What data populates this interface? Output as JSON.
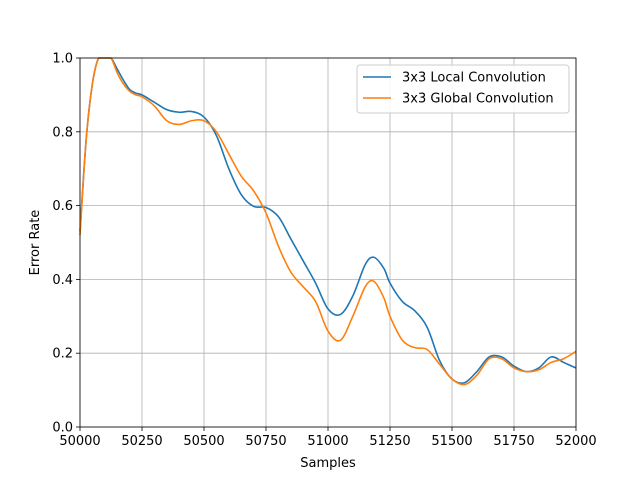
{
  "chart_data": {
    "type": "line",
    "xlabel": "Samples",
    "ylabel": "Error Rate",
    "xlim": [
      50000,
      52000
    ],
    "ylim": [
      0.0,
      1.0
    ],
    "xticks": [
      50000,
      50250,
      50500,
      50750,
      51000,
      51250,
      51500,
      51750,
      52000
    ],
    "xtick_labels": [
      "50000",
      "50250",
      "50500",
      "50750",
      "51000",
      "51250",
      "51500",
      "51750",
      "52000"
    ],
    "yticks": [
      0.0,
      0.2,
      0.4,
      0.6,
      0.8,
      1.0
    ],
    "ytick_labels": [
      "0.0",
      "0.2",
      "0.4",
      "0.6",
      "0.8",
      "1.0"
    ],
    "grid": true,
    "legend_position": "top-right",
    "series": [
      {
        "name": "3x3 Local Convolution",
        "color": "#1f77b4",
        "points": [
          [
            50000,
            0.53
          ],
          [
            50025,
            0.78
          ],
          [
            50050,
            0.93
          ],
          [
            50075,
            1.0
          ],
          [
            50100,
            1.0
          ],
          [
            50125,
            1.0
          ],
          [
            50150,
            0.97
          ],
          [
            50175,
            0.94
          ],
          [
            50200,
            0.915
          ],
          [
            50225,
            0.905
          ],
          [
            50250,
            0.9
          ],
          [
            50300,
            0.88
          ],
          [
            50350,
            0.86
          ],
          [
            50400,
            0.853
          ],
          [
            50450,
            0.855
          ],
          [
            50500,
            0.84
          ],
          [
            50550,
            0.79
          ],
          [
            50600,
            0.7
          ],
          [
            50650,
            0.63
          ],
          [
            50700,
            0.598
          ],
          [
            50750,
            0.595
          ],
          [
            50800,
            0.57
          ],
          [
            50850,
            0.51
          ],
          [
            50900,
            0.45
          ],
          [
            50950,
            0.39
          ],
          [
            51000,
            0.32
          ],
          [
            51050,
            0.305
          ],
          [
            51100,
            0.355
          ],
          [
            51150,
            0.44
          ],
          [
            51185,
            0.46
          ],
          [
            51225,
            0.43
          ],
          [
            51250,
            0.39
          ],
          [
            51300,
            0.34
          ],
          [
            51350,
            0.315
          ],
          [
            51400,
            0.27
          ],
          [
            51450,
            0.18
          ],
          [
            51500,
            0.13
          ],
          [
            51550,
            0.12
          ],
          [
            51600,
            0.15
          ],
          [
            51650,
            0.19
          ],
          [
            51700,
            0.19
          ],
          [
            51750,
            0.165
          ],
          [
            51800,
            0.15
          ],
          [
            51850,
            0.16
          ],
          [
            51900,
            0.19
          ],
          [
            51950,
            0.175
          ],
          [
            52000,
            0.16
          ]
        ]
      },
      {
        "name": "3x3 Global Convolution",
        "color": "#ff7f0e",
        "points": [
          [
            50000,
            0.52
          ],
          [
            50025,
            0.78
          ],
          [
            50050,
            0.93
          ],
          [
            50075,
            1.0
          ],
          [
            50100,
            1.0
          ],
          [
            50125,
            1.0
          ],
          [
            50150,
            0.96
          ],
          [
            50175,
            0.93
          ],
          [
            50200,
            0.91
          ],
          [
            50225,
            0.9
          ],
          [
            50250,
            0.895
          ],
          [
            50300,
            0.87
          ],
          [
            50350,
            0.83
          ],
          [
            50400,
            0.82
          ],
          [
            50450,
            0.83
          ],
          [
            50500,
            0.83
          ],
          [
            50550,
            0.8
          ],
          [
            50600,
            0.74
          ],
          [
            50650,
            0.68
          ],
          [
            50700,
            0.64
          ],
          [
            50750,
            0.58
          ],
          [
            50800,
            0.49
          ],
          [
            50850,
            0.42
          ],
          [
            50900,
            0.38
          ],
          [
            50950,
            0.34
          ],
          [
            51000,
            0.26
          ],
          [
            51050,
            0.235
          ],
          [
            51100,
            0.3
          ],
          [
            51150,
            0.38
          ],
          [
            51185,
            0.395
          ],
          [
            51225,
            0.35
          ],
          [
            51250,
            0.3
          ],
          [
            51300,
            0.235
          ],
          [
            51350,
            0.215
          ],
          [
            51400,
            0.21
          ],
          [
            51450,
            0.17
          ],
          [
            51500,
            0.13
          ],
          [
            51550,
            0.115
          ],
          [
            51600,
            0.14
          ],
          [
            51650,
            0.185
          ],
          [
            51700,
            0.185
          ],
          [
            51750,
            0.16
          ],
          [
            51800,
            0.15
          ],
          [
            51850,
            0.155
          ],
          [
            51900,
            0.175
          ],
          [
            51950,
            0.185
          ],
          [
            52000,
            0.205
          ]
        ]
      }
    ]
  }
}
